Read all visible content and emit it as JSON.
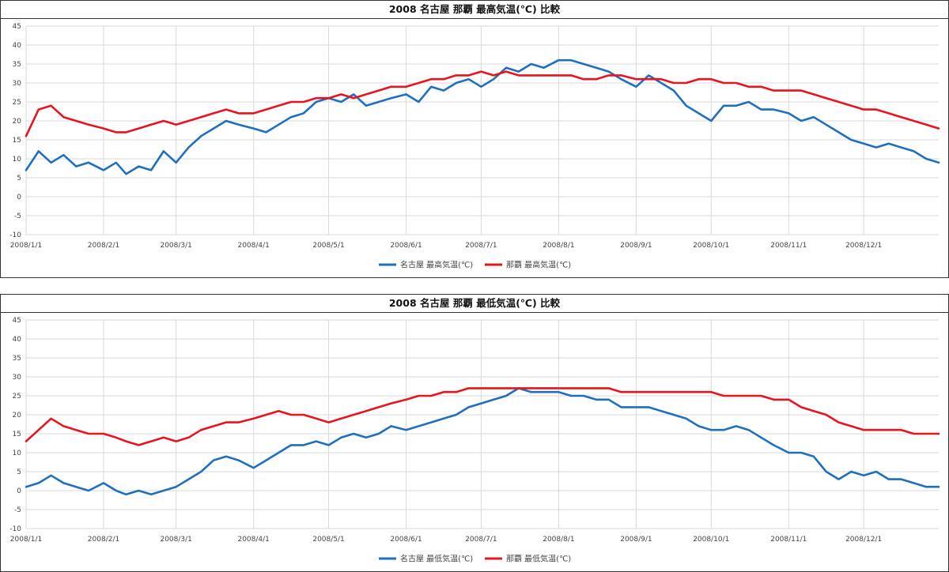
{
  "chart_data": [
    {
      "type": "line",
      "title": "2008 名古屋 那覇 最高気温(℃) 比較",
      "ylim": [
        -10,
        45
      ],
      "y_ticks": [
        "-10",
        "-5",
        "0",
        "5",
        "10",
        "15",
        "20",
        "25",
        "30",
        "35",
        "40",
        "45"
      ],
      "x_ticks": [
        "2008/1/1",
        "2008/2/1",
        "2008/3/1",
        "2008/4/1",
        "2008/5/1",
        "2008/6/1",
        "2008/7/1",
        "2008/8/1",
        "2008/9/1",
        "2008/10/1",
        "2008/11/1",
        "2008/12/1"
      ],
      "x_tick_days": [
        0,
        31,
        60,
        91,
        121,
        152,
        182,
        213,
        244,
        274,
        305,
        335
      ],
      "series": [
        {
          "name": "名古屋 最高気温(℃)",
          "color": "#1f6fbf",
          "days": [
            0,
            5,
            10,
            15,
            20,
            25,
            31,
            36,
            40,
            45,
            50,
            55,
            60,
            65,
            70,
            75,
            80,
            85,
            91,
            96,
            101,
            106,
            111,
            116,
            121,
            126,
            131,
            136,
            141,
            146,
            152,
            157,
            162,
            167,
            172,
            177,
            182,
            187,
            192,
            197,
            202,
            207,
            213,
            218,
            223,
            228,
            233,
            238,
            244,
            249,
            254,
            259,
            264,
            269,
            274,
            279,
            284,
            289,
            294,
            299,
            305,
            310,
            315,
            320,
            325,
            330,
            335,
            340,
            345,
            350,
            355,
            360,
            365
          ],
          "values": [
            7,
            12,
            9,
            11,
            8,
            9,
            7,
            9,
            6,
            8,
            7,
            12,
            9,
            13,
            16,
            18,
            20,
            19,
            18,
            17,
            19,
            21,
            22,
            25,
            26,
            25,
            27,
            24,
            25,
            26,
            27,
            25,
            29,
            28,
            30,
            31,
            29,
            31,
            34,
            33,
            35,
            34,
            36,
            36,
            35,
            34,
            33,
            31,
            29,
            32,
            30,
            28,
            24,
            22,
            20,
            24,
            24,
            25,
            23,
            23,
            22,
            20,
            21,
            19,
            17,
            15,
            14,
            13,
            14,
            13,
            12,
            10,
            9
          ]
        },
        {
          "name": "那覇 最高気温(℃)",
          "color": "#e8141e",
          "days": [
            0,
            5,
            10,
            15,
            20,
            25,
            31,
            36,
            40,
            45,
            50,
            55,
            60,
            65,
            70,
            75,
            80,
            85,
            91,
            96,
            101,
            106,
            111,
            116,
            121,
            126,
            131,
            136,
            141,
            146,
            152,
            157,
            162,
            167,
            172,
            177,
            182,
            187,
            192,
            197,
            202,
            207,
            213,
            218,
            223,
            228,
            233,
            238,
            244,
            249,
            254,
            259,
            264,
            269,
            274,
            279,
            284,
            289,
            294,
            299,
            305,
            310,
            315,
            320,
            325,
            330,
            335,
            340,
            345,
            350,
            355,
            360,
            365
          ],
          "values": [
            16,
            23,
            24,
            21,
            20,
            19,
            18,
            17,
            17,
            18,
            19,
            20,
            19,
            20,
            21,
            22,
            23,
            22,
            22,
            23,
            24,
            25,
            25,
            26,
            26,
            27,
            26,
            27,
            28,
            29,
            29,
            30,
            31,
            31,
            32,
            32,
            33,
            32,
            33,
            32,
            32,
            32,
            32,
            32,
            31,
            31,
            32,
            32,
            31,
            31,
            31,
            30,
            30,
            31,
            31,
            30,
            30,
            29,
            29,
            28,
            28,
            28,
            27,
            26,
            25,
            24,
            23,
            23,
            22,
            21,
            20,
            19,
            18
          ]
        }
      ],
      "legend": "bottom"
    },
    {
      "type": "line",
      "title": "2008 名古屋 那覇 最低気温(℃) 比較",
      "ylim": [
        -10,
        45
      ],
      "y_ticks": [
        "-10",
        "-5",
        "0",
        "5",
        "10",
        "15",
        "20",
        "25",
        "30",
        "35",
        "40",
        "45"
      ],
      "x_ticks": [
        "2008/1/1",
        "2008/2/1",
        "2008/3/1",
        "2008/4/1",
        "2008/5/1",
        "2008/6/1",
        "2008/7/1",
        "2008/8/1",
        "2008/9/1",
        "2008/10/1",
        "2008/11/1",
        "2008/12/1"
      ],
      "x_tick_days": [
        0,
        31,
        60,
        91,
        121,
        152,
        182,
        213,
        244,
        274,
        305,
        335
      ],
      "series": [
        {
          "name": "名古屋 最低気温(℃)",
          "color": "#1f6fbf",
          "days": [
            0,
            5,
            10,
            15,
            20,
            25,
            31,
            36,
            40,
            45,
            50,
            55,
            60,
            65,
            70,
            75,
            80,
            85,
            91,
            96,
            101,
            106,
            111,
            116,
            121,
            126,
            131,
            136,
            141,
            146,
            152,
            157,
            162,
            167,
            172,
            177,
            182,
            187,
            192,
            197,
            202,
            207,
            213,
            218,
            223,
            228,
            233,
            238,
            244,
            249,
            254,
            259,
            264,
            269,
            274,
            279,
            284,
            289,
            294,
            299,
            305,
            310,
            315,
            320,
            325,
            330,
            335,
            340,
            345,
            350,
            355,
            360,
            365
          ],
          "values": [
            1,
            2,
            4,
            2,
            1,
            0,
            2,
            0,
            -1,
            0,
            -1,
            0,
            1,
            3,
            5,
            8,
            9,
            8,
            6,
            8,
            10,
            12,
            12,
            13,
            12,
            14,
            15,
            14,
            15,
            17,
            16,
            17,
            18,
            19,
            20,
            22,
            23,
            24,
            25,
            27,
            26,
            26,
            26,
            25,
            25,
            24,
            24,
            22,
            22,
            22,
            21,
            20,
            19,
            17,
            16,
            16,
            17,
            16,
            14,
            12,
            10,
            10,
            9,
            5,
            3,
            5,
            4,
            5,
            3,
            3,
            2,
            1,
            1
          ]
        },
        {
          "name": "那覇 最低気温(℃)",
          "color": "#e8141e",
          "days": [
            0,
            5,
            10,
            15,
            20,
            25,
            31,
            36,
            40,
            45,
            50,
            55,
            60,
            65,
            70,
            75,
            80,
            85,
            91,
            96,
            101,
            106,
            111,
            116,
            121,
            126,
            131,
            136,
            141,
            146,
            152,
            157,
            162,
            167,
            172,
            177,
            182,
            187,
            192,
            197,
            202,
            207,
            213,
            218,
            223,
            228,
            233,
            238,
            244,
            249,
            254,
            259,
            264,
            269,
            274,
            279,
            284,
            289,
            294,
            299,
            305,
            310,
            315,
            320,
            325,
            330,
            335,
            340,
            345,
            350,
            355,
            360,
            365
          ],
          "values": [
            13,
            16,
            19,
            17,
            16,
            15,
            15,
            14,
            13,
            12,
            13,
            14,
            13,
            14,
            16,
            17,
            18,
            18,
            19,
            20,
            21,
            20,
            20,
            19,
            18,
            19,
            20,
            21,
            22,
            23,
            24,
            25,
            25,
            26,
            26,
            27,
            27,
            27,
            27,
            27,
            27,
            27,
            27,
            27,
            27,
            27,
            27,
            26,
            26,
            26,
            26,
            26,
            26,
            26,
            26,
            25,
            25,
            25,
            25,
            24,
            24,
            22,
            21,
            20,
            18,
            17,
            16,
            16,
            16,
            16,
            15,
            15,
            15
          ]
        }
      ],
      "legend": "bottom"
    }
  ]
}
